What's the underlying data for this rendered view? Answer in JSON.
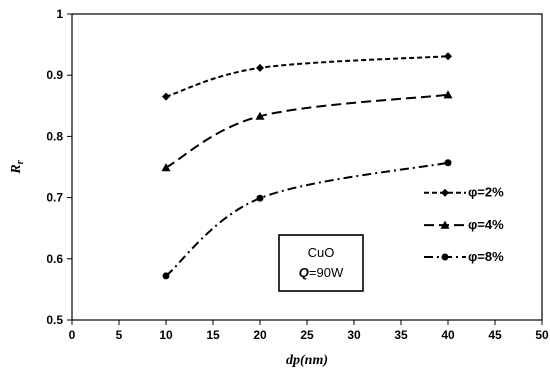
{
  "chart_data": {
    "type": "line",
    "xlabel": "dp(nm)",
    "ylabel_main": "R",
    "ylabel_sub": "r",
    "xlim": [
      0,
      50
    ],
    "ylim": [
      0.5,
      1.0
    ],
    "xticks": [
      0,
      5,
      10,
      15,
      20,
      25,
      30,
      35,
      40,
      45,
      50
    ],
    "xtick_labels": [
      "0",
      "5",
      "10",
      "15",
      "20",
      "25",
      "30",
      "35",
      "40",
      "45",
      "50"
    ],
    "yticks": [
      0.5,
      0.6,
      0.7,
      0.8,
      0.9,
      1.0
    ],
    "ytick_labels": [
      "0.5",
      "0.6",
      "0.7",
      "0.8",
      "0.9",
      "1"
    ],
    "grid": false,
    "legend_position": "right",
    "series": [
      {
        "name": "φ=2%",
        "marker": "diamond",
        "dash": "dashed-short",
        "x": [
          10,
          20,
          40
        ],
        "y": [
          0.865,
          0.912,
          0.931
        ]
      },
      {
        "name": "φ=4%",
        "marker": "triangle",
        "dash": "dashed-long",
        "x": [
          10,
          20,
          40
        ],
        "y": [
          0.749,
          0.833,
          0.868
        ]
      },
      {
        "name": "φ=8%",
        "marker": "circle",
        "dash": "dash-dot",
        "x": [
          10,
          20,
          40
        ],
        "y": [
          0.572,
          0.699,
          0.757
        ]
      }
    ],
    "annotation": {
      "line1": "CuO",
      "line2_var": "Q",
      "line2_rest": "=90W"
    }
  }
}
